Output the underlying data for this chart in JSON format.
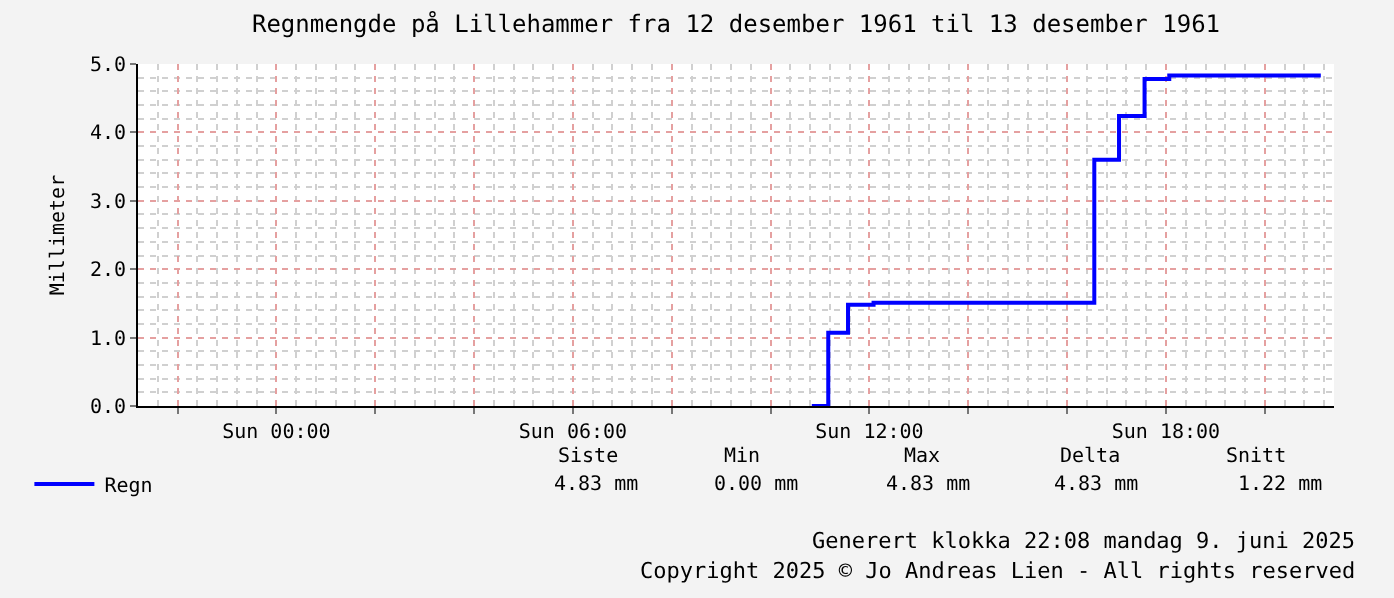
{
  "chart_data": {
    "type": "step",
    "title": "Regnmengde på Lillehammer fra 12 desember 1961 til 13 desember 1961",
    "ylabel": "Millimeter",
    "x": [
      "1961-12-10T10:50",
      "1961-12-10T11:10",
      "1961-12-10T11:34",
      "1961-12-10T12:05",
      "1961-12-10T16:33",
      "1961-12-10T17:03",
      "1961-12-10T17:34",
      "1961-12-10T18:04",
      "1961-12-10T21:08"
    ],
    "series": [
      {
        "name": "Regn",
        "color": "#0000ff",
        "values": [
          0,
          1.07,
          1.48,
          1.51,
          3.6,
          4.24,
          4.78,
          4.83,
          4.83
        ]
      }
    ],
    "xlim": [
      "1961-12-09T21:12",
      "1961-12-10T21:24"
    ],
    "xticks": [
      {
        "value": "1961-12-09T22:00",
        "label": null
      },
      {
        "value": "1961-12-10T00:00",
        "label": "Sun 00:00"
      },
      {
        "value": "1961-12-10T02:00",
        "label": null
      },
      {
        "value": "1961-12-10T04:00",
        "label": null
      },
      {
        "value": "1961-12-10T06:00",
        "label": "Sun 06:00"
      },
      {
        "value": "1961-12-10T08:00",
        "label": null
      },
      {
        "value": "1961-12-10T10:00",
        "label": null
      },
      {
        "value": "1961-12-10T12:00",
        "label": "Sun 12:00"
      },
      {
        "value": "1961-12-10T14:00",
        "label": null
      },
      {
        "value": "1961-12-10T16:00",
        "label": null
      },
      {
        "value": "1961-12-10T18:00",
        "label": "Sun 18:00"
      },
      {
        "value": "1961-12-10T20:00",
        "label": null
      }
    ],
    "ylim": [
      0,
      5
    ],
    "yticks": [
      {
        "value": 0,
        "label": "0.0"
      },
      {
        "value": 1,
        "label": "1.0"
      },
      {
        "value": 2,
        "label": "2.0"
      },
      {
        "value": 3,
        "label": "3.0"
      },
      {
        "value": 4,
        "label": "4.0"
      },
      {
        "value": 5,
        "label": "5.0"
      }
    ],
    "grid": true,
    "legend": "bottom left",
    "line_style": "solid",
    "marker": "none",
    "annotations": [
      "Siste",
      "Min",
      "Max",
      "Delta",
      "Snitt",
      "4.83 mm",
      "0.00 mm",
      "4.83 mm",
      "4.83 mm",
      "1.22 mm",
      "Generert klokka 22:08 mandag 9. juni 2025",
      "Copyright 2025 © Jo Andreas Lien - All rights reserved"
    ]
  }
}
